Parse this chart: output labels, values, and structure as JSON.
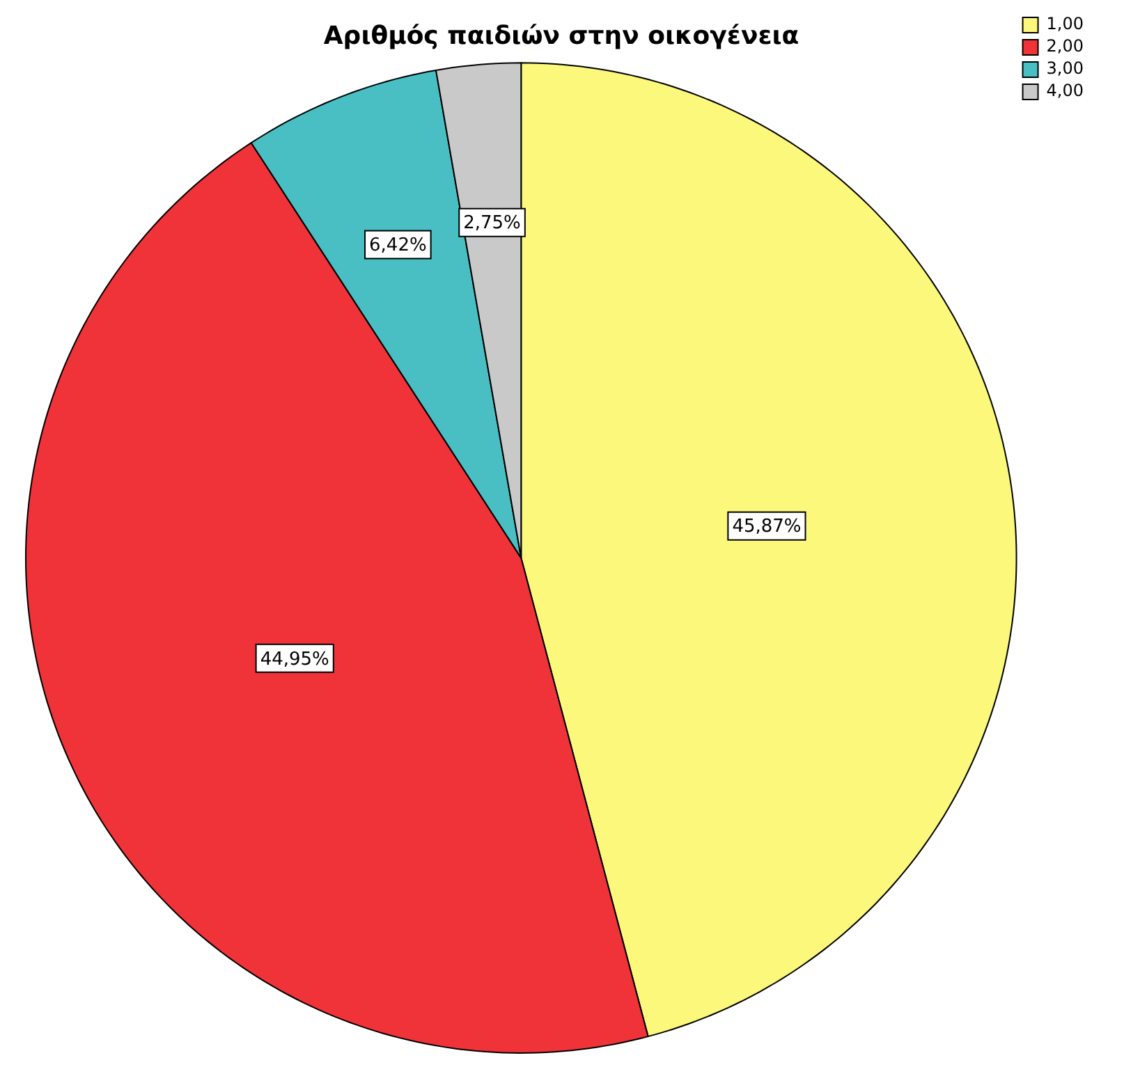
{
  "chart_data": {
    "type": "pie",
    "title": "Αριθμός παιδιών στην οικογένεια",
    "categories": [
      "1,00",
      "2,00",
      "3,00",
      "4,00"
    ],
    "values": [
      45.87,
      44.95,
      6.42,
      2.75
    ],
    "value_labels": [
      "45,87%",
      "44,95%",
      "6,42%",
      "2,75%"
    ],
    "colors": [
      "#fbf87c",
      "#ef3339",
      "#49bfc3",
      "#c9c9c9"
    ],
    "legend": "top right"
  }
}
